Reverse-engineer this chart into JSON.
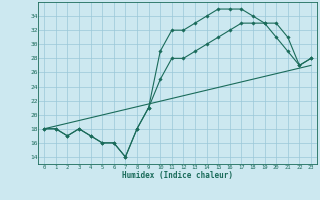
{
  "title": "",
  "xlabel": "Humidex (Indice chaleur)",
  "bg_color": "#cce8f0",
  "grid_color": "#9ac8d8",
  "line_color": "#1a6b5a",
  "xlim": [
    -0.5,
    23.5
  ],
  "ylim": [
    13.0,
    36.0
  ],
  "xticks": [
    0,
    1,
    2,
    3,
    4,
    5,
    6,
    7,
    8,
    9,
    10,
    11,
    12,
    13,
    14,
    15,
    16,
    17,
    18,
    19,
    20,
    21,
    22,
    23
  ],
  "yticks": [
    14,
    16,
    18,
    20,
    22,
    24,
    26,
    28,
    30,
    32,
    34
  ],
  "line1_x": [
    0,
    1,
    2,
    3,
    4,
    5,
    6,
    7,
    8,
    9,
    10,
    11,
    12,
    13,
    14,
    15,
    16,
    17,
    18,
    19,
    20,
    21,
    22,
    23
  ],
  "line1_y": [
    18,
    18,
    17,
    18,
    17,
    16,
    16,
    14,
    18,
    21,
    29,
    32,
    32,
    33,
    34,
    35,
    35,
    35,
    34,
    33,
    31,
    29,
    27,
    28
  ],
  "line2_x": [
    0,
    1,
    2,
    3,
    4,
    5,
    6,
    7,
    8,
    9,
    10,
    11,
    12,
    13,
    14,
    15,
    16,
    17,
    18,
    19,
    20,
    21,
    22,
    23
  ],
  "line2_y": [
    18,
    18,
    17,
    18,
    17,
    16,
    16,
    14,
    18,
    21,
    25,
    28,
    28,
    29,
    30,
    31,
    32,
    33,
    33,
    33,
    33,
    31,
    27,
    28
  ],
  "line3_x": [
    0,
    23
  ],
  "line3_y": [
    18,
    27
  ]
}
